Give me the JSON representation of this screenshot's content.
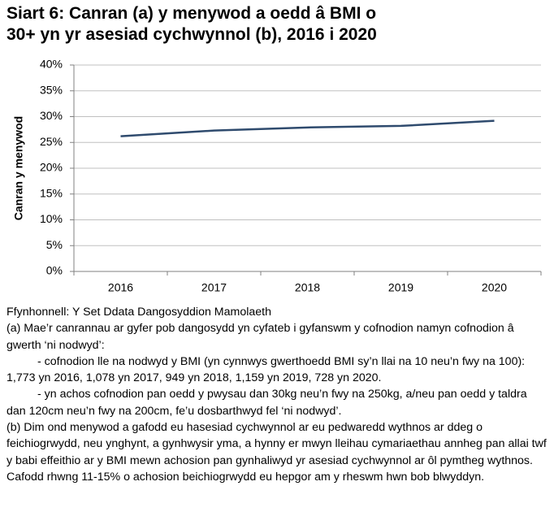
{
  "chart_data": {
    "type": "line",
    "title": "Siart 6: Canran (a) y menywod a oedd â BMI o 30+ yn yr asesiad cychwynnol (b), 2016 i 2020",
    "y_label": "Canran y menywod",
    "categories": [
      "2016",
      "2017",
      "2018",
      "2019",
      "2020"
    ],
    "values": [
      26.2,
      27.3,
      27.9,
      28.2,
      29.2
    ],
    "color": "#2f4b6e",
    "ylim": [
      0,
      40
    ],
    "yticks": [
      {
        "value": 0,
        "label": "0%"
      },
      {
        "value": 5,
        "label": "5%"
      },
      {
        "value": 10,
        "label": "10%"
      },
      {
        "value": 15,
        "label": "15%"
      },
      {
        "value": 20,
        "label": "20%"
      },
      {
        "value": 25,
        "label": "25%"
      },
      {
        "value": 30,
        "label": "30%"
      },
      {
        "value": 35,
        "label": "35%"
      },
      {
        "value": 40,
        "label": "40%"
      }
    ],
    "grid": true
  },
  "notes": {
    "source": "Ffynhonnell: Y Set Ddata Dangosyddion Mamolaeth",
    "note_a": "(a) Mae’r canrannau ar gyfer pob dangosydd yn cyfateb i gyfanswm y cofnodion namyn cofnodion â gwerth ‘ni nodwyd’:",
    "bullets": [
      "- cofnodion lle na nodwyd y BMI (yn cynnwys gwerthoedd BMI sy’n llai na 10 neu’n fwy na 100): 1,773 yn 2016, 1,078 yn 2017, 949 yn 2018, 1,159 yn 2019, 728 yn 2020.",
      "- yn achos cofnodion pan oedd y pwysau dan 30kg neu’n fwy na 250kg, a/neu pan oedd y taldra dan 120cm neu’n fwy na 200cm, fe’u dosbarthwyd fel ‘ni nodwyd’."
    ],
    "note_b": "(b) Dim ond menywod a gafodd eu hasesiad cychwynnol ar eu pedwaredd wythnos ar ddeg o feichiogrwydd, neu ynghynt, a gynhwysir yma, a hynny er mwyn lleihau cymariaethau annheg pan allai twf y babi effeithio ar y BMI mewn achosion pan gynhaliwyd yr asesiad cychwynnol ar ôl pymtheg wythnos. Cafodd rhwng 11-15% o achosion beichiogrwydd eu hepgor am y rheswm hwn bob blwyddyn."
  }
}
